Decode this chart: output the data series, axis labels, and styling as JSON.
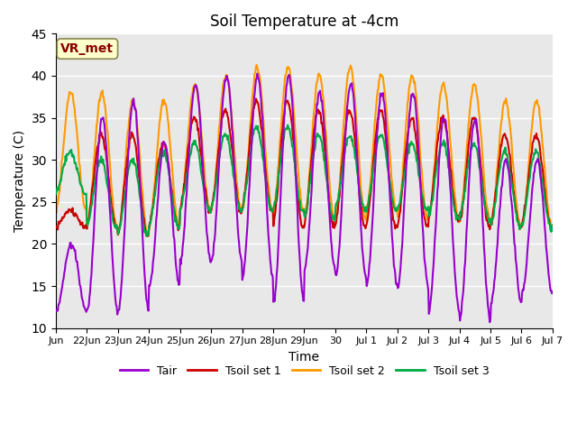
{
  "title": "Soil Temperature at -4cm",
  "xlabel": "Time",
  "ylabel": "Temperature (C)",
  "ylim": [
    10,
    45
  ],
  "background_color": "#e8e8e8",
  "grid_color": "white",
  "colors": {
    "Tair": "#9900cc",
    "Tsoil1": "#cc0000",
    "Tsoil2": "#ff9900",
    "Tsoil3": "#00aa44"
  },
  "legend_labels": [
    "Tair",
    "Tsoil set 1",
    "Tsoil set 2",
    "Tsoil set 3"
  ],
  "annotation_text": "VR_met",
  "annotation_color": "#8b0000",
  "annotation_bg": "#ffffcc",
  "tick_labels": [
    "Jun",
    "22Jun",
    "23Jun",
    "24Jun",
    "25Jun",
    "26Jun",
    "27Jun",
    "28Jun",
    "29Jun",
    "30",
    "Jul 1",
    "Jul 2",
    "Jul 3",
    "Jul 4",
    "Jul 5",
    "Jul 6",
    "Jul 7"
  ],
  "n_days": 16,
  "pts_per_day": 48,
  "tair_min": [
    12,
    12,
    12,
    15,
    18,
    18,
    16,
    13,
    17,
    16,
    15,
    15,
    12,
    11,
    13,
    14
  ],
  "tair_max": [
    20,
    35,
    37,
    32,
    39,
    40,
    40,
    40,
    38,
    39,
    38,
    38,
    35,
    35,
    30,
    30
  ],
  "tsoil1_min": [
    22,
    22,
    21,
    22,
    24,
    24,
    24,
    22,
    22,
    22,
    22,
    22,
    23,
    22,
    22,
    22
  ],
  "tsoil1_max": [
    24,
    33,
    33,
    32,
    35,
    36,
    37,
    37,
    36,
    36,
    36,
    35,
    35,
    35,
    33,
    33
  ],
  "tsoil2_min": [
    24,
    22,
    21,
    22,
    24,
    24,
    24,
    24,
    23,
    23,
    24,
    23,
    23,
    23,
    22,
    22
  ],
  "tsoil2_max": [
    38,
    38,
    37,
    37,
    39,
    40,
    41,
    41,
    40,
    41,
    40,
    40,
    39,
    39,
    37,
    37
  ],
  "tsoil3_min": [
    26,
    22,
    21,
    22,
    24,
    24,
    24,
    24,
    23,
    24,
    24,
    24,
    23,
    23,
    22,
    22
  ],
  "tsoil3_max": [
    31,
    30,
    30,
    31,
    32,
    33,
    34,
    34,
    33,
    33,
    33,
    32,
    32,
    32,
    31,
    31
  ]
}
